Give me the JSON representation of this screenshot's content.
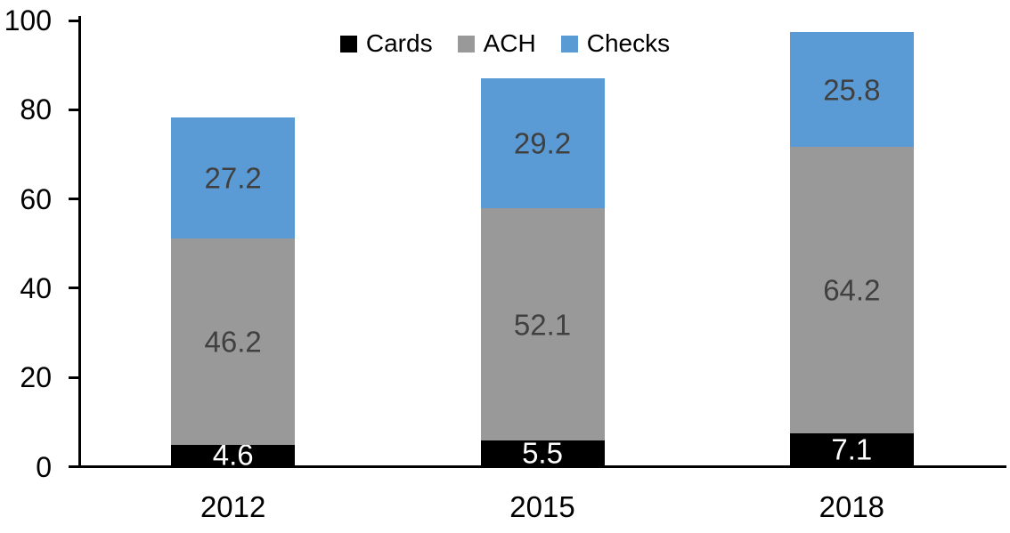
{
  "chart_data": {
    "type": "bar",
    "variant": "stacked-column",
    "title": "",
    "xlabel": "",
    "ylabel": "",
    "categories": [
      "2012",
      "2015",
      "2018"
    ],
    "series": [
      {
        "name": "Cards",
        "color": "#000000",
        "label_color": "#FFFFFF",
        "values": [
          4.6,
          5.5,
          7.1
        ]
      },
      {
        "name": "ACH",
        "color": "#999999",
        "label_color": "#404040",
        "values": [
          46.2,
          52.1,
          64.2
        ]
      },
      {
        "name": "Checks",
        "color": "#5B9BD5",
        "label_color": "#404040",
        "values": [
          27.2,
          29.2,
          25.8
        ]
      }
    ],
    "ylim": [
      0,
      100
    ],
    "yticks": [
      0,
      20,
      40,
      60,
      80,
      100
    ],
    "grid": false,
    "legend_position": "top-center",
    "axis_color": "#000000",
    "background": "#FFFFFF"
  }
}
